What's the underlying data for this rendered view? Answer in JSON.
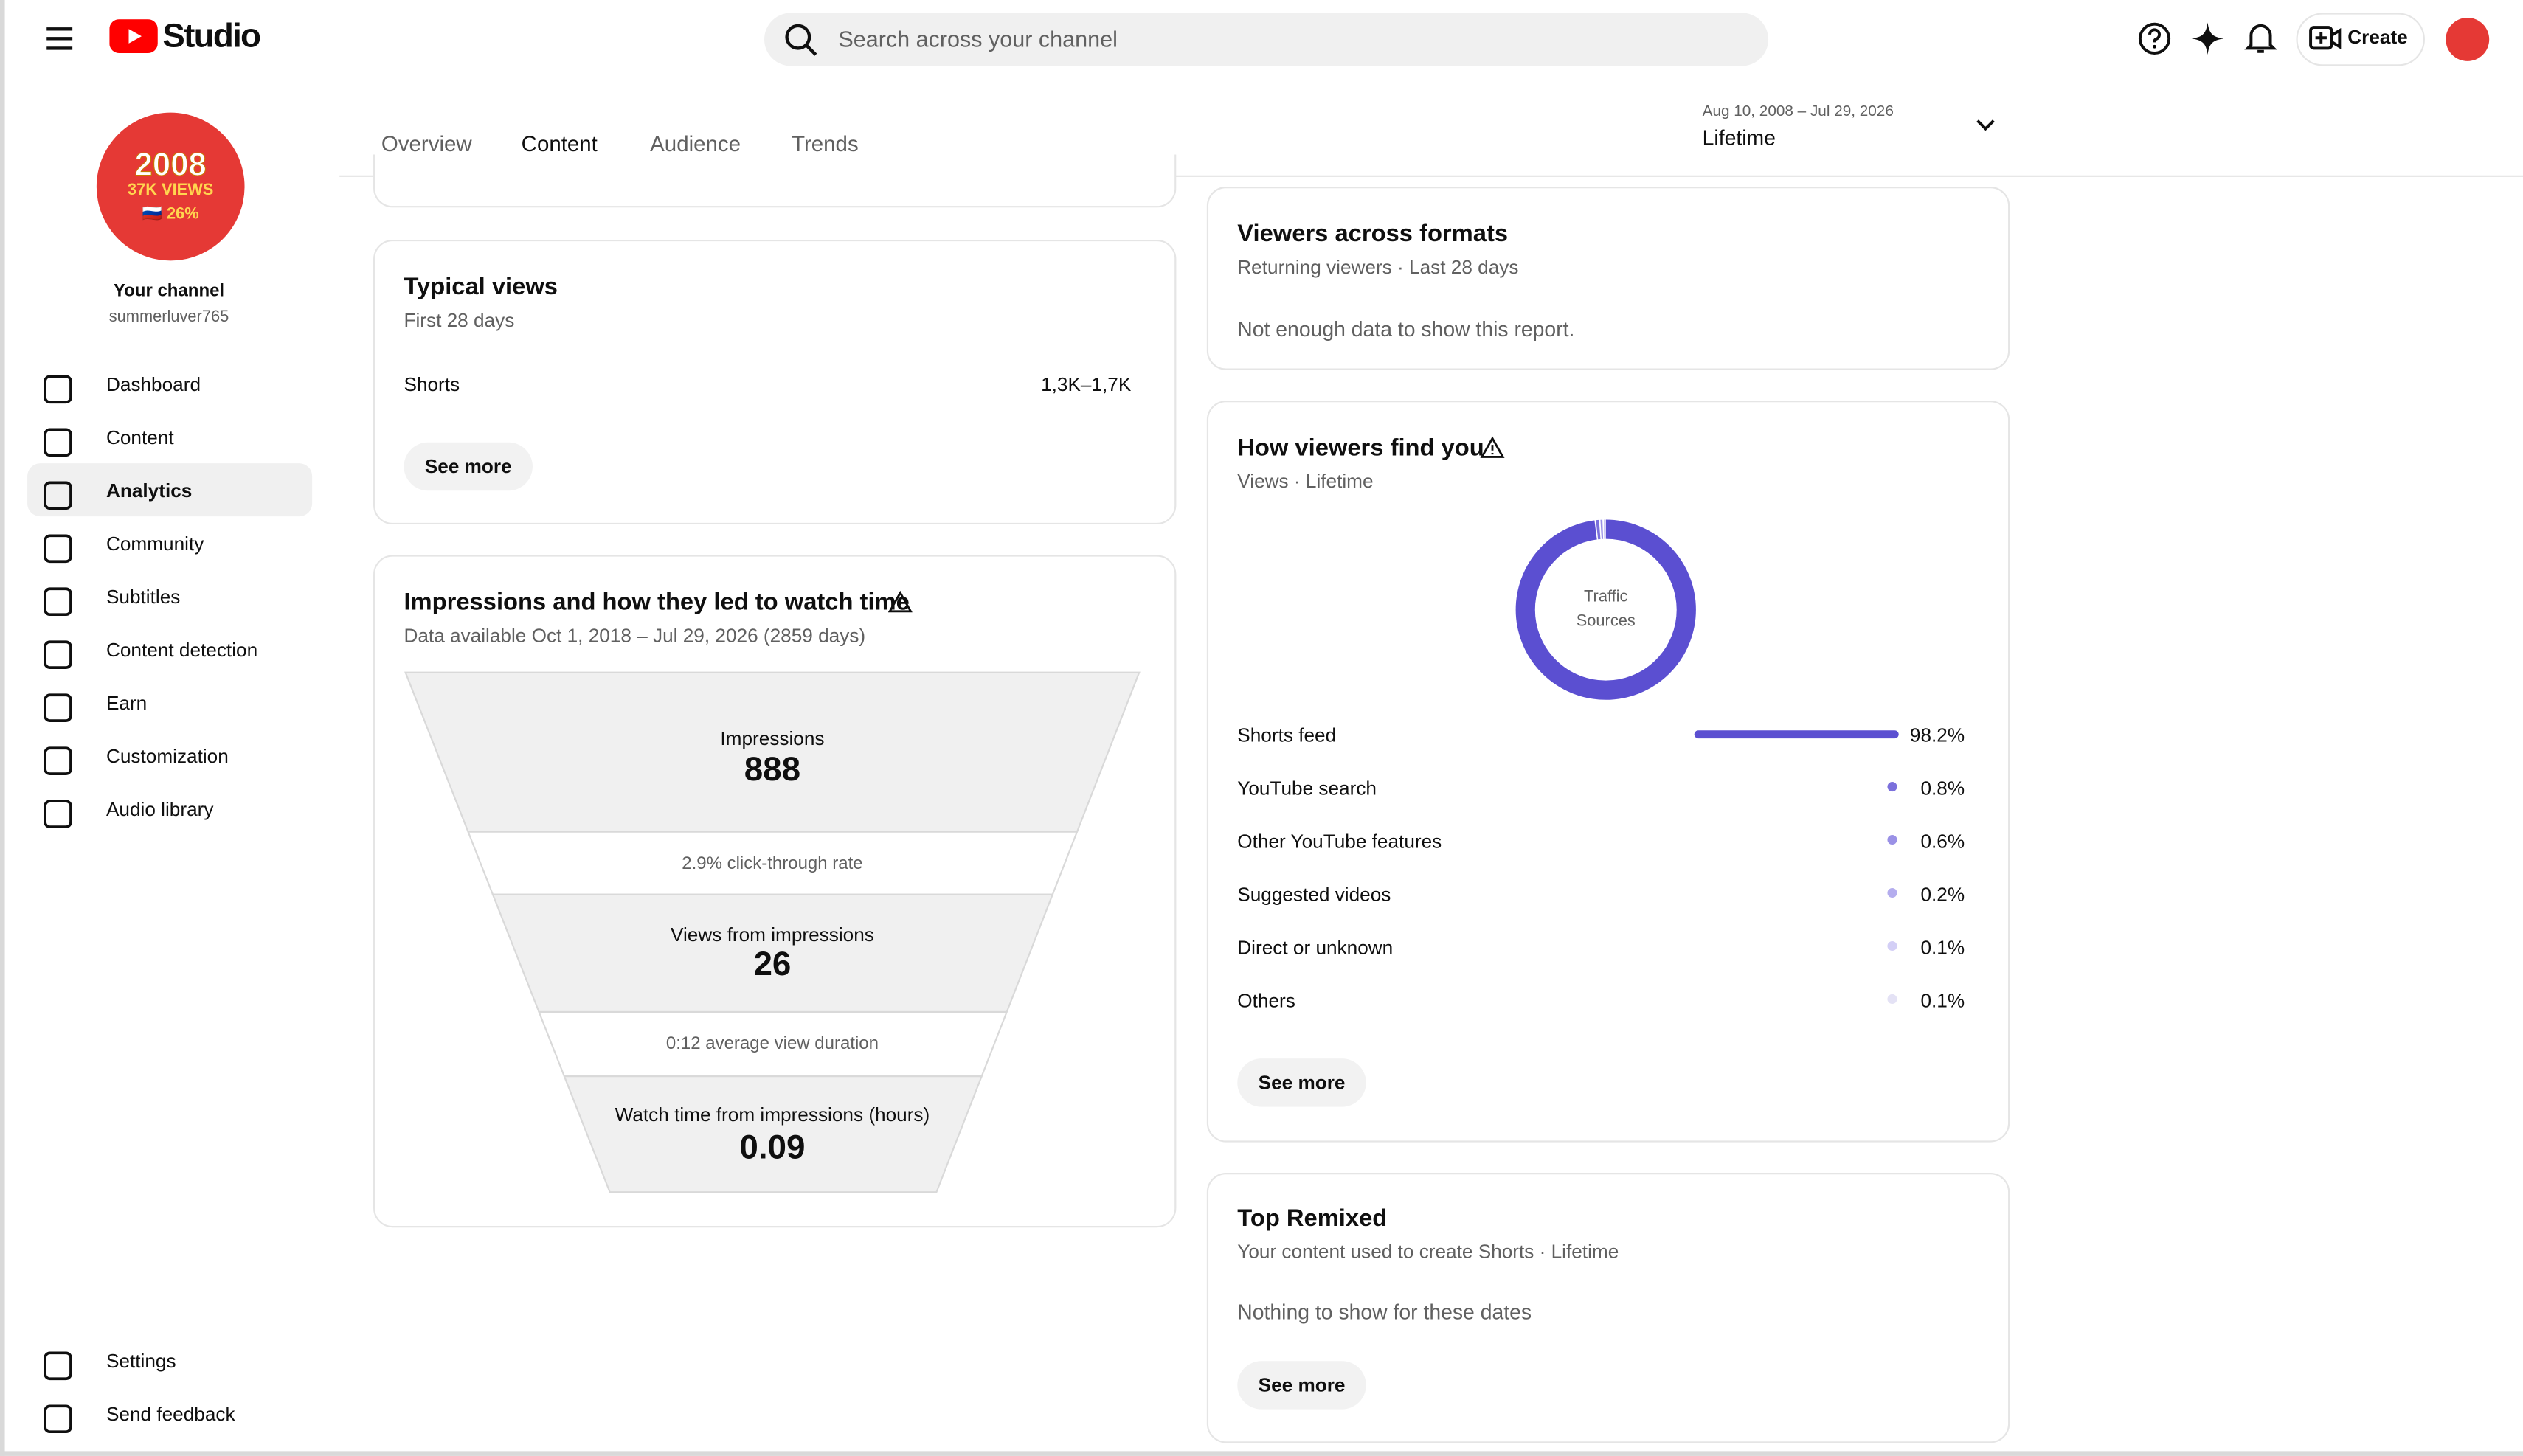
{
  "header": {
    "logo": "Studio",
    "search_placeholder": "Search across your channel",
    "create_button": "Create"
  },
  "channel": {
    "avatar_text": [
      "2008",
      "37K VIEWS",
      "🇷🇺 26%"
    ],
    "name": "Your channel",
    "handle": "summerluver765"
  },
  "nav": {
    "items": [
      "Dashboard",
      "Content",
      "Analytics",
      "Community",
      "Subtitles",
      "Content detection",
      "Earn",
      "Customization",
      "Audio library"
    ],
    "footer_items": [
      "Settings",
      "Send feedback"
    ]
  },
  "tabs": {
    "items": [
      "Overview",
      "Content",
      "Audience",
      "Trends"
    ]
  },
  "date_range": {
    "range": "Aug 10, 2008 – Jul 29, 2026",
    "period": "Lifetime"
  },
  "typical_views": {
    "title": "Typical views",
    "subtitle": "First 28 days",
    "rows": [
      [
        "Shorts",
        "1,3K–1,7K"
      ]
    ],
    "button": "See more"
  },
  "impressions": {
    "title": "Impressions and how they led to watch time",
    "subtitle": "Data available Oct 1, 2018 – Jul 29, 2026 (2859 days)",
    "impressions_label": "Impressions",
    "impressions": 888,
    "ctr": "2.9% click-through rate",
    "views_label": "Views from impressions",
    "views": 26,
    "avd": "0:12 average view duration",
    "watch_label": "Watch time from impressions (hours)",
    "watch_time": 0.09
  },
  "viewers_formats": {
    "title": "Viewers across formats",
    "subtitle": "Returning viewers · Last 28 days",
    "message": "Not enough data to show this report."
  },
  "traffic": {
    "title": "How viewers find you",
    "subtitle": "Views · Lifetime",
    "center_label": "Traffic Sources",
    "sources": [
      {
        "name": "Shorts feed",
        "value": 98.2,
        "label": "98.2%",
        "color": "#5b4fd1"
      },
      {
        "name": "YouTube search",
        "value": 0.8,
        "label": "0.8%",
        "color": "#7b70dc"
      },
      {
        "name": "Other YouTube features",
        "value": 0.6,
        "label": "0.6%",
        "color": "#9a91e6"
      },
      {
        "name": "Suggested videos",
        "value": 0.2,
        "label": "0.2%",
        "color": "#b4adee"
      },
      {
        "name": "Direct or unknown",
        "value": 0.1,
        "label": "0.1%",
        "color": "#d3cff6"
      },
      {
        "name": "Others",
        "value": 0.1,
        "label": "0.1%",
        "color": "#e4e2f5"
      }
    ],
    "button": "See more"
  },
  "remixed": {
    "title": "Top Remixed",
    "subtitle": "Your content used to create Shorts · Lifetime",
    "message": "Nothing to show for these dates",
    "button": "See more"
  }
}
